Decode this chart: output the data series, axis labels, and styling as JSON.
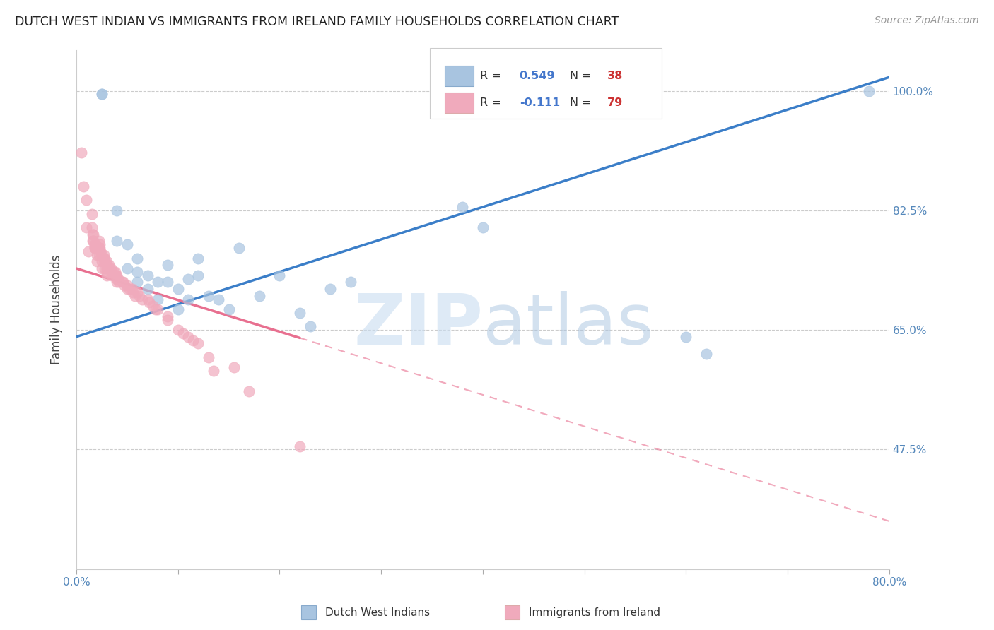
{
  "title": "DUTCH WEST INDIAN VS IMMIGRANTS FROM IRELAND FAMILY HOUSEHOLDS CORRELATION CHART",
  "source": "Source: ZipAtlas.com",
  "ylabel": "Family Households",
  "yticks": [
    "100.0%",
    "82.5%",
    "65.0%",
    "47.5%"
  ],
  "ytick_vals": [
    1.0,
    0.825,
    0.65,
    0.475
  ],
  "xmin": 0.0,
  "xmax": 0.8,
  "ymin": 0.3,
  "ymax": 1.06,
  "blue_color": "#A8C4E0",
  "pink_color": "#F0AABC",
  "blue_line_color": "#3B7EC8",
  "pink_line_color": "#E87090",
  "watermark_zip": "ZIP",
  "watermark_atlas": "atlas",
  "legend_label1": "Dutch West Indians",
  "legend_label2": "Immigrants from Ireland",
  "blue_scatter_x": [
    0.025,
    0.025,
    0.04,
    0.04,
    0.05,
    0.05,
    0.06,
    0.06,
    0.06,
    0.07,
    0.07,
    0.08,
    0.08,
    0.09,
    0.09,
    0.1,
    0.1,
    0.11,
    0.11,
    0.12,
    0.12,
    0.13,
    0.14,
    0.15,
    0.16,
    0.18,
    0.2,
    0.22,
    0.23,
    0.25,
    0.27,
    0.38,
    0.4,
    0.6,
    0.62,
    0.78
  ],
  "blue_scatter_y": [
    0.995,
    0.995,
    0.825,
    0.78,
    0.775,
    0.74,
    0.755,
    0.735,
    0.72,
    0.73,
    0.71,
    0.72,
    0.695,
    0.745,
    0.72,
    0.71,
    0.68,
    0.725,
    0.695,
    0.755,
    0.73,
    0.7,
    0.695,
    0.68,
    0.77,
    0.7,
    0.73,
    0.675,
    0.655,
    0.71,
    0.72,
    0.83,
    0.8,
    0.64,
    0.615,
    1.0
  ],
  "pink_scatter_x": [
    0.005,
    0.007,
    0.01,
    0.01,
    0.012,
    0.015,
    0.015,
    0.016,
    0.016,
    0.017,
    0.017,
    0.018,
    0.018,
    0.018,
    0.019,
    0.019,
    0.02,
    0.02,
    0.02,
    0.022,
    0.022,
    0.022,
    0.023,
    0.023,
    0.024,
    0.025,
    0.025,
    0.025,
    0.027,
    0.027,
    0.028,
    0.028,
    0.028,
    0.03,
    0.03,
    0.03,
    0.03,
    0.03,
    0.032,
    0.033,
    0.034,
    0.035,
    0.035,
    0.037,
    0.038,
    0.038,
    0.039,
    0.04,
    0.04,
    0.04,
    0.041,
    0.042,
    0.045,
    0.046,
    0.047,
    0.05,
    0.05,
    0.052,
    0.055,
    0.056,
    0.058,
    0.06,
    0.062,
    0.065,
    0.07,
    0.072,
    0.075,
    0.078,
    0.08,
    0.09,
    0.09,
    0.1,
    0.105,
    0.11,
    0.115,
    0.12,
    0.13,
    0.135,
    0.155,
    0.17,
    0.22
  ],
  "pink_scatter_y": [
    0.91,
    0.86,
    0.84,
    0.8,
    0.765,
    0.82,
    0.8,
    0.79,
    0.78,
    0.79,
    0.78,
    0.77,
    0.775,
    0.77,
    0.775,
    0.77,
    0.77,
    0.76,
    0.75,
    0.78,
    0.77,
    0.76,
    0.775,
    0.77,
    0.765,
    0.76,
    0.75,
    0.74,
    0.76,
    0.755,
    0.755,
    0.75,
    0.74,
    0.75,
    0.745,
    0.74,
    0.735,
    0.73,
    0.745,
    0.74,
    0.74,
    0.735,
    0.73,
    0.735,
    0.735,
    0.73,
    0.73,
    0.73,
    0.725,
    0.72,
    0.725,
    0.72,
    0.72,
    0.72,
    0.715,
    0.715,
    0.71,
    0.71,
    0.71,
    0.705,
    0.7,
    0.705,
    0.7,
    0.695,
    0.695,
    0.69,
    0.685,
    0.68,
    0.68,
    0.67,
    0.665,
    0.65,
    0.645,
    0.64,
    0.635,
    0.63,
    0.61,
    0.59,
    0.595,
    0.56,
    0.48
  ]
}
